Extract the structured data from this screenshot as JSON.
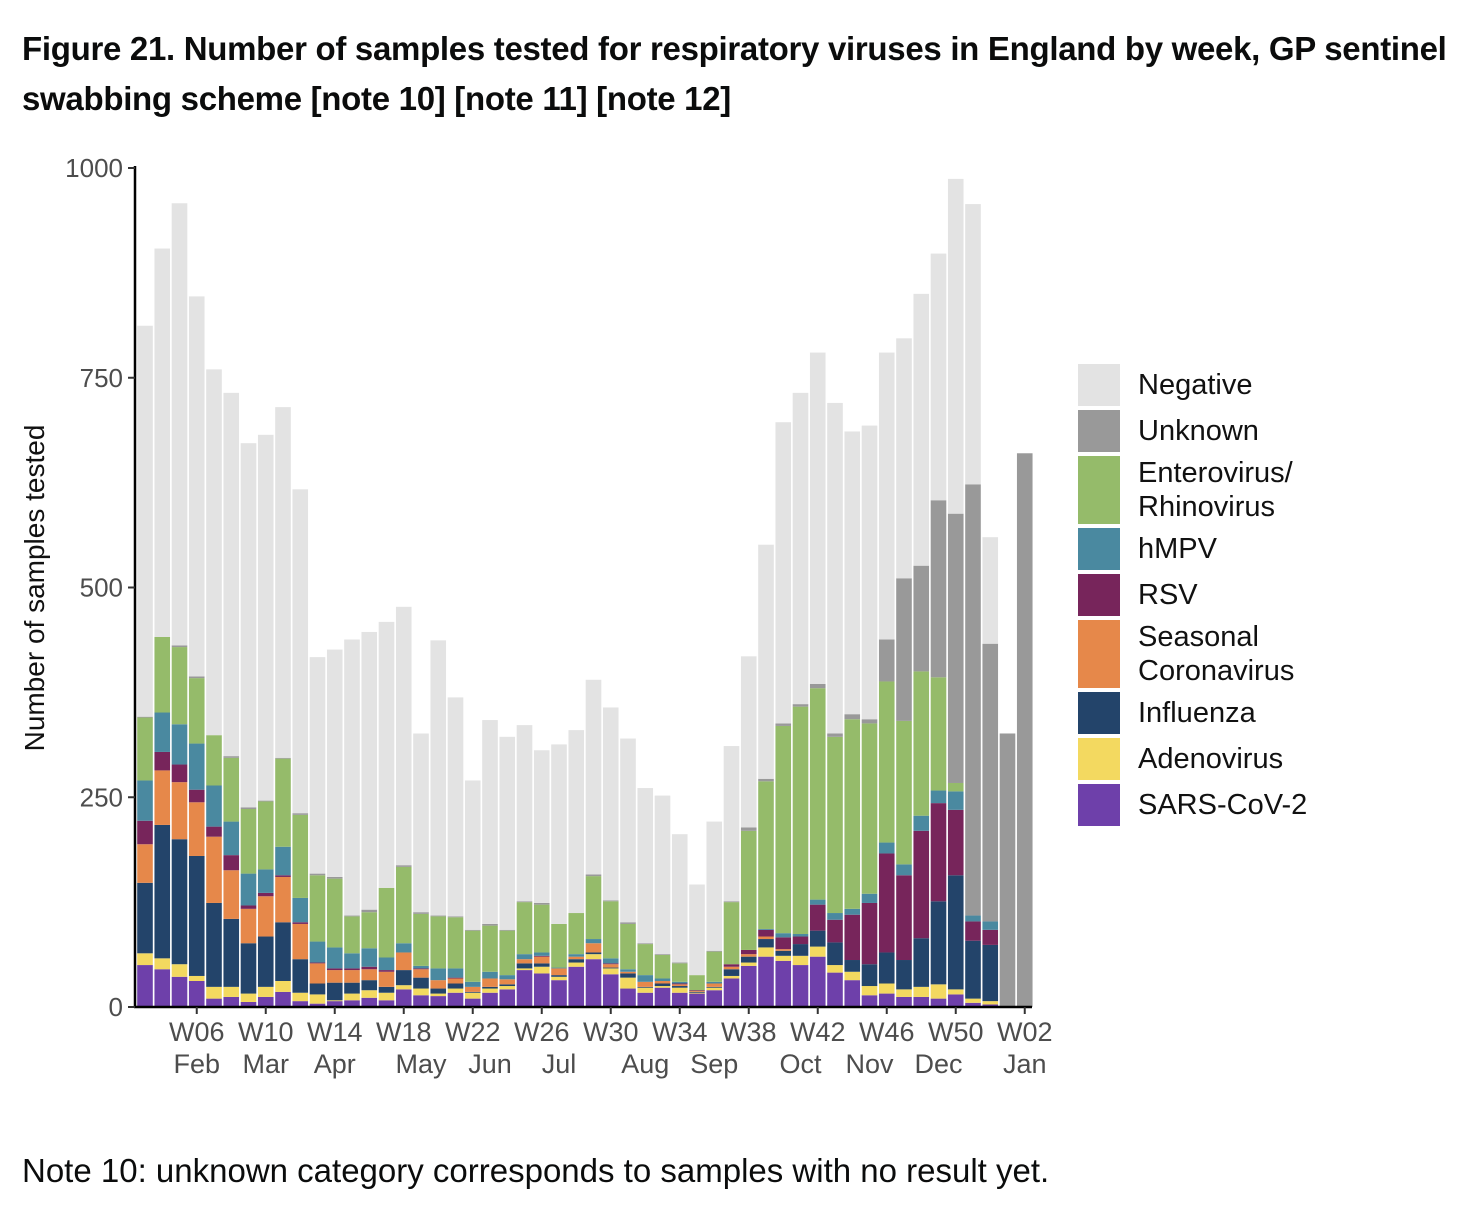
{
  "title": "Figure 21. Number of samples tested for respiratory viruses in England by week, GP sentinel swabbing scheme [note 10] [note 11] [note 12]",
  "note": "Note 10: unknown category corresponds to samples with no result yet.",
  "chart_data": {
    "type": "bar",
    "stacked": true,
    "title": "Figure 21. Number of samples tested for respiratory viruses in England by week, GP sentinel swabbing scheme [note 10] [note 11] [note 12]",
    "ylabel": "Number of samples tested",
    "xlabel": "",
    "ylim": [
      0,
      1000
    ],
    "yticks": [
      0,
      250,
      500,
      750,
      1000
    ],
    "grid": false,
    "legend_position": "right",
    "categories": [
      "W03",
      "W04",
      "W05",
      "W06",
      "W07",
      "W08",
      "W09",
      "W10",
      "W11",
      "W12",
      "W13",
      "W14",
      "W15",
      "W16",
      "W17",
      "W18",
      "W19",
      "W20",
      "W21",
      "W22",
      "W23",
      "W24",
      "W25",
      "W26",
      "W27",
      "W28",
      "W29",
      "W30",
      "W31",
      "W32",
      "W33",
      "W34",
      "W35",
      "W36",
      "W37",
      "W38",
      "W39",
      "W40",
      "W41",
      "W42",
      "W43",
      "W44",
      "W45",
      "W46",
      "W47",
      "W48",
      "W49",
      "W50",
      "W51",
      "W52",
      "W01",
      "W02"
    ],
    "xtick_labels": [
      "W06",
      "W10",
      "W14",
      "W18",
      "W22",
      "W26",
      "W30",
      "W34",
      "W38",
      "W42",
      "W46",
      "W50",
      "W02"
    ],
    "month_labels": [
      {
        "label": "Feb",
        "week": "W06"
      },
      {
        "label": "Mar",
        "week": "W10"
      },
      {
        "label": "Apr",
        "week": "W14"
      },
      {
        "label": "May",
        "week": "W19"
      },
      {
        "label": "Jun",
        "week": "W23"
      },
      {
        "label": "Jul",
        "week": "W27"
      },
      {
        "label": "Aug",
        "week": "W32"
      },
      {
        "label": "Sep",
        "week": "W36"
      },
      {
        "label": "Oct",
        "week": "W41"
      },
      {
        "label": "Nov",
        "week": "W45"
      },
      {
        "label": "Dec",
        "week": "W49"
      },
      {
        "label": "Jan",
        "week": "W02"
      }
    ],
    "series": [
      {
        "name": "SARS-CoV-2",
        "color": "#6e40aa",
        "values": [
          50,
          45,
          36,
          31,
          10,
          12,
          6,
          12,
          18,
          7,
          4,
          7,
          8,
          11,
          8,
          21,
          14,
          13,
          17,
          10,
          17,
          21,
          44,
          40,
          32,
          48,
          57,
          39,
          22,
          17,
          23,
          17,
          16,
          20,
          34,
          49,
          60,
          55,
          50,
          60,
          41,
          32,
          14,
          16,
          12,
          12,
          10,
          15,
          5,
          3,
          0,
          0
        ]
      },
      {
        "name": "Adenovirus",
        "color": "#f3d960",
        "values": [
          14,
          13,
          15,
          6,
          14,
          12,
          10,
          12,
          13,
          10,
          11,
          1,
          8,
          9,
          9,
          5,
          8,
          3,
          5,
          7,
          5,
          4,
          2,
          8,
          4,
          5,
          6,
          7,
          13,
          6,
          2,
          6,
          1,
          3,
          3,
          4,
          11,
          6,
          11,
          12,
          9,
          10,
          11,
          12,
          9,
          12,
          17,
          6,
          5,
          4,
          0,
          0
        ]
      },
      {
        "name": "Influenza",
        "color": "#23446a",
        "values": [
          84,
          159,
          149,
          143,
          100,
          81,
          60,
          60,
          70,
          40,
          13,
          21,
          13,
          12,
          7,
          18,
          13,
          6,
          6,
          1,
          2,
          2,
          6,
          4,
          2,
          4,
          2,
          1,
          5,
          1,
          3,
          2,
          1,
          1,
          8,
          7,
          10,
          6,
          14,
          19,
          27,
          14,
          26,
          37,
          35,
          58,
          99,
          136,
          69,
          67,
          0,
          0
        ]
      },
      {
        "name": "Seasonal Coronavirus",
        "color": "#e6884a",
        "values": [
          46,
          65,
          68,
          64,
          79,
          58,
          41,
          48,
          54,
          42,
          24,
          15,
          15,
          13,
          18,
          21,
          10,
          10,
          6,
          6,
          10,
          6,
          5,
          8,
          8,
          3,
          11,
          4,
          2,
          6,
          3,
          2,
          1,
          4,
          3,
          3,
          3,
          2,
          0,
          0,
          0,
          0,
          0,
          0,
          0,
          0,
          0,
          0,
          0,
          0,
          0,
          0
        ]
      },
      {
        "name": "RSV",
        "color": "#77255b",
        "values": [
          28,
          22,
          21,
          15,
          12,
          18,
          4,
          4,
          2,
          2,
          1,
          2,
          2,
          3,
          2,
          0,
          1,
          0,
          1,
          0,
          0,
          0,
          0,
          1,
          0,
          0,
          0,
          1,
          0,
          0,
          0,
          1,
          1,
          0,
          3,
          5,
          8,
          14,
          9,
          31,
          27,
          54,
          73,
          118,
          101,
          128,
          117,
          78,
          23,
          18,
          0,
          0
        ]
      },
      {
        "name": "hMPV",
        "color": "#4a89a0",
        "values": [
          48,
          47,
          48,
          55,
          49,
          40,
          38,
          28,
          34,
          29,
          25,
          25,
          18,
          22,
          15,
          11,
          3,
          14,
          11,
          6,
          8,
          5,
          6,
          4,
          1,
          3,
          5,
          6,
          3,
          8,
          3,
          2,
          0,
          2,
          0,
          0,
          1,
          5,
          3,
          6,
          8,
          7,
          11,
          13,
          13,
          18,
          15,
          22,
          7,
          10,
          0,
          0
        ]
      },
      {
        "name": "Enterovirus/ Rhinovirus",
        "color": "#95bb6a",
        "values": [
          75,
          90,
          92,
          78,
          60,
          76,
          77,
          81,
          105,
          99,
          79,
          82,
          44,
          43,
          83,
          91,
          62,
          62,
          61,
          61,
          55,
          53,
          62,
          57,
          52,
          49,
          75,
          68,
          54,
          37,
          28,
          22,
          18,
          36,
          74,
          142,
          176,
          247,
          271,
          252,
          210,
          226,
          203,
          192,
          171,
          172,
          135,
          10,
          0,
          0,
          0,
          0
        ]
      },
      {
        "name": "Unknown",
        "color": "#999999",
        "values": [
          1,
          0,
          2,
          2,
          0,
          2,
          2,
          1,
          1,
          2,
          2,
          2,
          1,
          3,
          0,
          2,
          2,
          1,
          1,
          1,
          2,
          1,
          1,
          2,
          0,
          0,
          2,
          1,
          2,
          1,
          1,
          1,
          0,
          1,
          1,
          4,
          3,
          3,
          3,
          5,
          4,
          6,
          5,
          50,
          170,
          126,
          211,
          321,
          514,
          331,
          326,
          660
        ]
      },
      {
        "name": "Negative",
        "color": "#e3e3e3",
        "values": [
          466,
          463,
          527,
          453,
          436,
          433,
          434,
          436,
          418,
          386,
          258,
          271,
          329,
          331,
          317,
          308,
          213,
          328,
          261,
          178,
          243,
          230,
          210,
          182,
          214,
          218,
          232,
          230,
          219,
          185,
          189,
          153,
          108,
          154,
          185,
          204,
          279,
          359,
          371,
          395,
          394,
          337,
          350,
          342,
          286,
          324,
          294,
          399,
          334,
          127,
          0,
          0
        ]
      }
    ]
  },
  "legend": {
    "items": [
      {
        "label": "Negative",
        "color": "#e3e3e3"
      },
      {
        "label": "Unknown",
        "color": "#999999"
      },
      {
        "label": "Enterovirus/ Rhinovirus",
        "color": "#95bb6a"
      },
      {
        "label": "hMPV",
        "color": "#4a89a0"
      },
      {
        "label": "RSV",
        "color": "#77255b"
      },
      {
        "label": "Seasonal Coronavirus",
        "color": "#e6884a"
      },
      {
        "label": "Influenza",
        "color": "#23446a"
      },
      {
        "label": "Adenovirus",
        "color": "#f3d960"
      },
      {
        "label": "SARS-CoV-2",
        "color": "#6e40aa"
      }
    ]
  }
}
